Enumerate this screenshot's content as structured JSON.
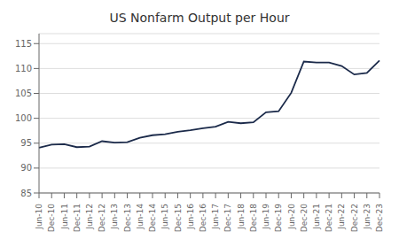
{
  "chart_data": {
    "type": "line",
    "title": "US Nonfarm Output per Hour",
    "categories": [
      "Jun-10",
      "Dec-10",
      "Jun-11",
      "Dec-11",
      "Jun-12",
      "Dec-12",
      "Jun-13",
      "Dec-13",
      "Jun-14",
      "Dec-14",
      "Jun-15",
      "Dec-15",
      "Jun-16",
      "Dec-16",
      "Jun-17",
      "Dec-17",
      "Jun-18",
      "Dec-18",
      "Jun-19",
      "Dec-19",
      "Jun-20",
      "Dec-20",
      "Jun-21",
      "Dec-21",
      "Jun-22",
      "Dec-22",
      "Jun-23",
      "Dec-23"
    ],
    "values": [
      94.1,
      94.7,
      94.8,
      94.2,
      94.3,
      95.4,
      95.1,
      95.2,
      96.1,
      96.6,
      96.8,
      97.3,
      97.6,
      98.0,
      98.3,
      99.3,
      99.0,
      99.2,
      101.2,
      101.4,
      105.1,
      111.4,
      111.2,
      111.2,
      110.5,
      108.8,
      109.1,
      111.6
    ],
    "color": "#1b2a4a",
    "ylim": [
      85,
      117
    ],
    "yticks": [
      85,
      90,
      95,
      100,
      105,
      110,
      115
    ],
    "grid": true
  }
}
